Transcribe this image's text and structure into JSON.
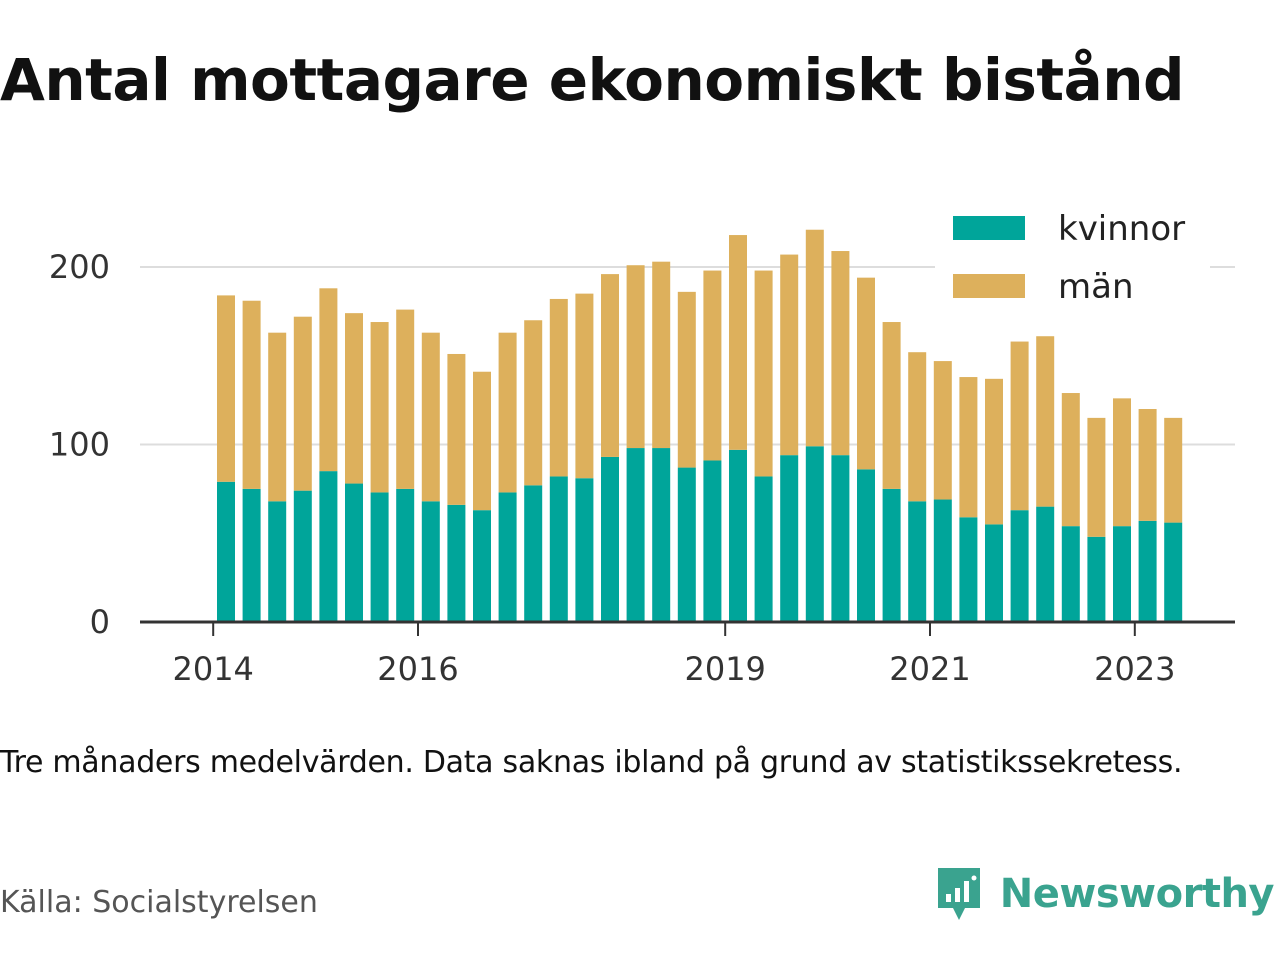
{
  "title": "Antal mottagare ekonomiskt bistånd",
  "note": "Tre månaders medelvärden. Data saknas ibland på grund av statistikssekretess.",
  "source": "Källa: Socialstyrelsen",
  "brand": {
    "name": "Newsworthy",
    "icon": "newsworthy-logo-icon",
    "color": "#3aa38f"
  },
  "chart_data": {
    "type": "bar",
    "stacked": true,
    "grid": true,
    "legend_position": "top-right",
    "ylim": [
      0,
      220
    ],
    "y_ticks": [
      0,
      100,
      200
    ],
    "x_ticks": [
      {
        "label": "2014",
        "index": -0.5
      },
      {
        "label": "2016",
        "index": 7.5
      },
      {
        "label": "2019",
        "index": 19.5
      },
      {
        "label": "2021",
        "index": 27.5
      },
      {
        "label": "2023",
        "index": 35.5
      }
    ],
    "series": [
      {
        "name": "kvinnor",
        "color": "#00a59a",
        "values": [
          79,
          75,
          68,
          74,
          85,
          78,
          73,
          75,
          68,
          66,
          63,
          73,
          77,
          82,
          81,
          93,
          98,
          98,
          87,
          91,
          97,
          82,
          94,
          99,
          94,
          86,
          75,
          68,
          69,
          59,
          55,
          63,
          65,
          54,
          48,
          54,
          57,
          56
        ]
      },
      {
        "name": "män",
        "color": "#ddb05c",
        "values": [
          105,
          106,
          95,
          98,
          103,
          96,
          96,
          101,
          95,
          85,
          78,
          90,
          93,
          100,
          104,
          103,
          103,
          105,
          99,
          107,
          121,
          116,
          113,
          122,
          115,
          108,
          94,
          84,
          78,
          79,
          82,
          95,
          96,
          75,
          67,
          72,
          63,
          59
        ]
      }
    ]
  }
}
